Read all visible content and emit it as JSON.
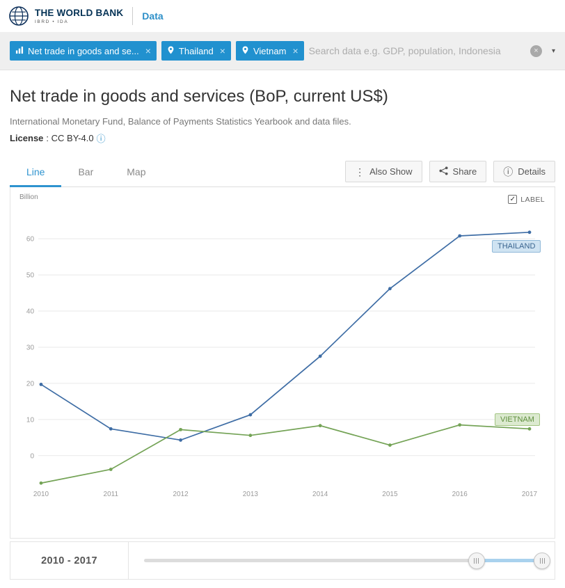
{
  "header": {
    "brand_name": "THE WORLD BANK",
    "brand_sub": "IBRD • IDA",
    "site_link": "Data"
  },
  "search": {
    "tags": [
      {
        "label": "Net trade in goods and se..."
      },
      {
        "label": "Thailand"
      },
      {
        "label": "Vietnam"
      }
    ],
    "placeholder": "Search data e.g. GDP, population, Indonesia"
  },
  "page": {
    "title": "Net trade in goods and services (BoP, current US$)",
    "source": "International Monetary Fund, Balance of Payments Statistics Yearbook and data files.",
    "license_label": "License",
    "license_value": ": CC BY-4.0"
  },
  "tabs": [
    {
      "label": "Line"
    },
    {
      "label": "Bar"
    },
    {
      "label": "Map"
    }
  ],
  "actions": {
    "also_show": "Also Show",
    "share": "Share",
    "details": "Details"
  },
  "chart": {
    "unit_label": "Billion",
    "label_toggle": "LABEL",
    "thailand_badge": "THAILAND",
    "vietnam_badge": "VIETNAM"
  },
  "chart_data": {
    "type": "line",
    "title": "Net trade in goods and services (BoP, current US$)",
    "ylabel": "Billion (current US$)",
    "x": [
      2010,
      2011,
      2012,
      2013,
      2014,
      2015,
      2016,
      2017
    ],
    "series": [
      {
        "name": "Thailand",
        "color": "#3e6da5",
        "values": [
          19.7,
          7.4,
          4.3,
          11.3,
          27.5,
          46.2,
          60.8,
          61.8
        ]
      },
      {
        "name": "Vietnam",
        "color": "#74a356",
        "values": [
          -7.6,
          -3.8,
          7.2,
          5.6,
          8.3,
          2.9,
          8.5,
          7.4
        ]
      }
    ],
    "yticks": [
      0,
      10,
      20,
      30,
      40,
      50,
      60
    ],
    "ylim": [
      -12,
      72
    ],
    "grid": true,
    "legend_position": "end-of-line-labels"
  },
  "range": {
    "label": "2010 - 2017"
  },
  "icons": {
    "close": "×",
    "chevron": "▾",
    "ellipsis": "⋮",
    "info": "ⓘ",
    "check": "✓",
    "clear": "×"
  }
}
